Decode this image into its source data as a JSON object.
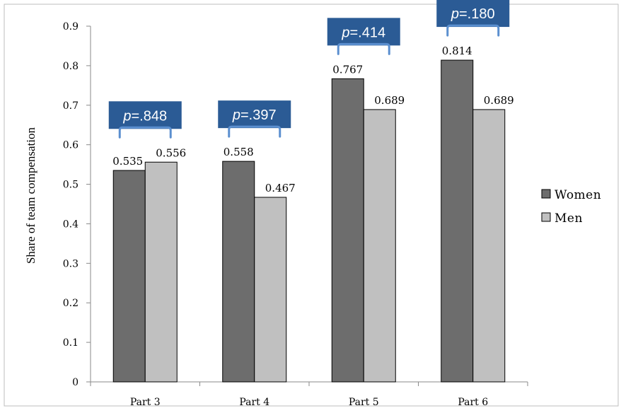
{
  "chart_data": {
    "type": "bar",
    "title": "",
    "xlabel": "",
    "ylabel": "Share of team compensation",
    "ylim": [
      0,
      0.9
    ],
    "yticks": [
      "0",
      "0.1",
      "0.2",
      "0.3",
      "0.4",
      "0.5",
      "0.6",
      "0.7",
      "0.8",
      "0.9"
    ],
    "categories": [
      "Part 3",
      "Part 4",
      "Part 5",
      "Part 6"
    ],
    "series": [
      {
        "name": "Women",
        "color": "#6d6d6d",
        "values": [
          0.535,
          0.558,
          0.767,
          0.814
        ],
        "labels": [
          "0.535",
          "0.558",
          "0.767",
          "0.814"
        ]
      },
      {
        "name": "Men",
        "color": "#c0c0c0",
        "values": [
          0.556,
          0.467,
          0.689,
          0.689
        ],
        "labels": [
          "0.556",
          "0.467",
          "0.689",
          "0.689"
        ]
      }
    ],
    "annotations": [
      {
        "category": "Part 3",
        "prefix": "p",
        "text": "=.848"
      },
      {
        "category": "Part 4",
        "prefix": "p",
        "text": "=.397"
      },
      {
        "category": "Part 5",
        "prefix": "p",
        "text": "=.414"
      },
      {
        "category": "Part 6",
        "prefix": "p",
        "text": "=.180"
      }
    ],
    "annotation_color": "#2b5b95",
    "bracket_color": "#5b8fcf",
    "grid": false,
    "legend_position": "right"
  }
}
